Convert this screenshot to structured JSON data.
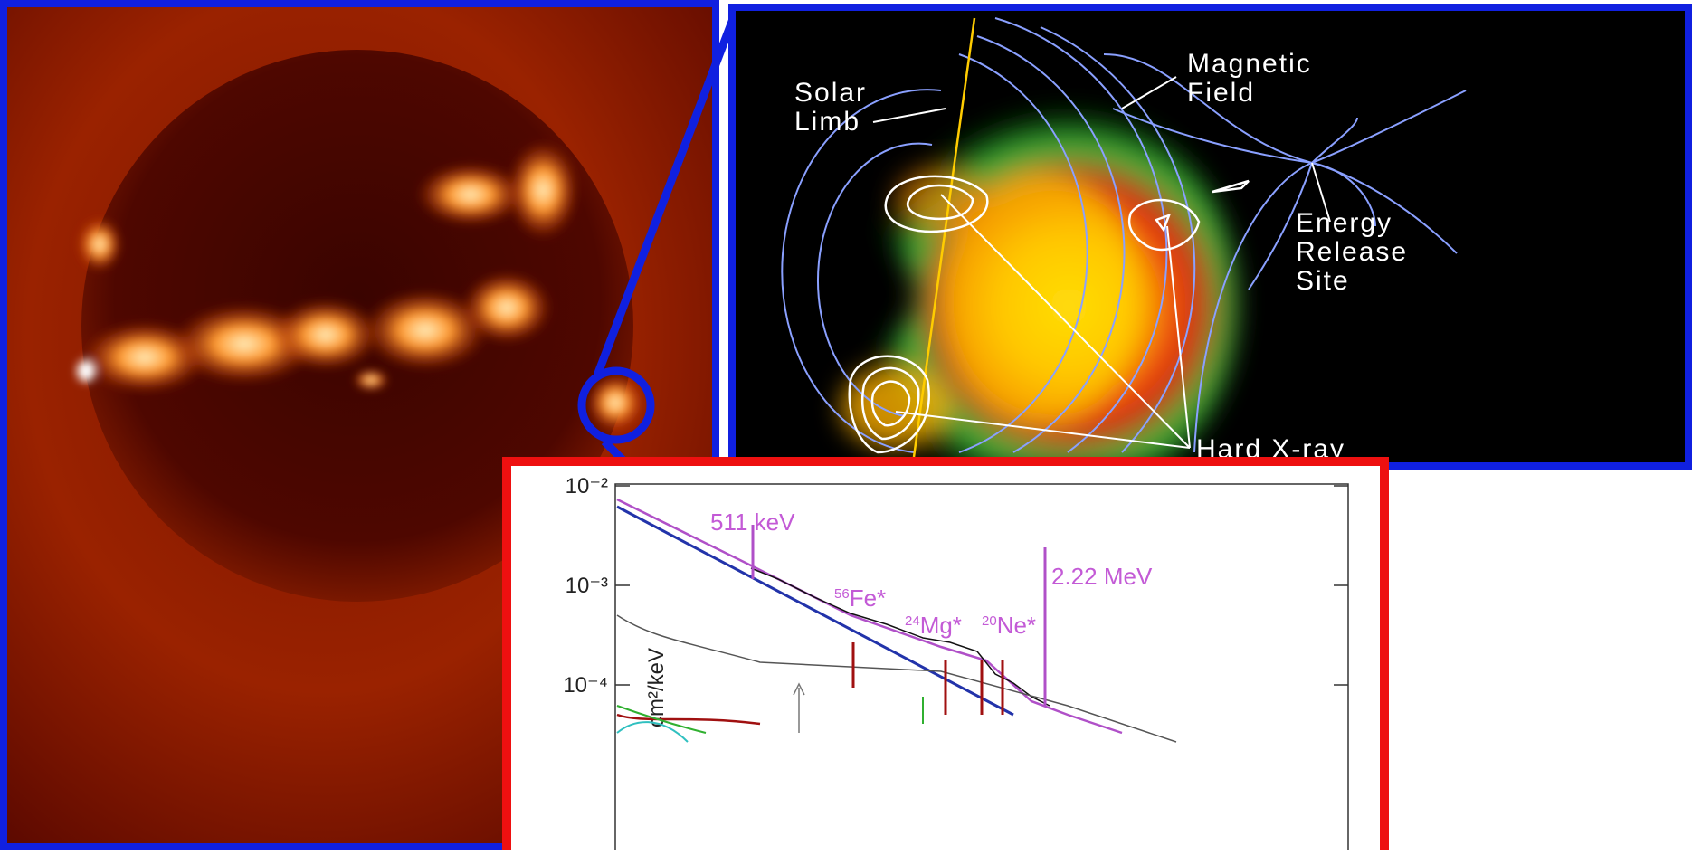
{
  "flare_panel": {
    "solar_limb": [
      "Solar",
      "Limb"
    ],
    "magnetic_field": [
      "Magnetic",
      "Field"
    ],
    "energy_release_site": [
      "Energy",
      "Release",
      "Site"
    ],
    "hard_xray": "Hard X-ray"
  },
  "spectrum_panel": {
    "y_axis_label": "cm²/keV",
    "yticks": [
      {
        "value": 0.01,
        "label": "10⁻²"
      },
      {
        "value": 0.001,
        "label": "10⁻³"
      },
      {
        "value": 0.0001,
        "label": "10⁻⁴"
      }
    ],
    "lines": {
      "annihilation": "511 keV",
      "iron": {
        "mass": "56",
        "name": "Fe*"
      },
      "magnesium": {
        "mass": "24",
        "name": "Mg*"
      },
      "neon": {
        "mass": "20",
        "name": "Ne*"
      },
      "neutron_capture": "2.22 MeV"
    }
  }
}
